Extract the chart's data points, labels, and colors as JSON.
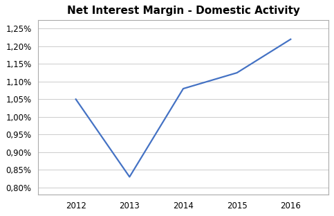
{
  "title": "Net Interest Margin - Domestic Activity",
  "x": [
    2012,
    2013,
    2014,
    2015,
    2016
  ],
  "y": [
    0.0105,
    0.0083,
    0.0108,
    0.01125,
    0.0122
  ],
  "line_color": "#4472C4",
  "line_width": 1.6,
  "background_color": "#ffffff",
  "grid_color": "#cccccc",
  "ylim_min": 0.0078,
  "ylim_max": 0.01275,
  "title_fontsize": 11,
  "tick_fontsize": 8.5,
  "border_color": "#aaaaaa",
  "xlim_min": 2011.3,
  "xlim_max": 2016.7
}
